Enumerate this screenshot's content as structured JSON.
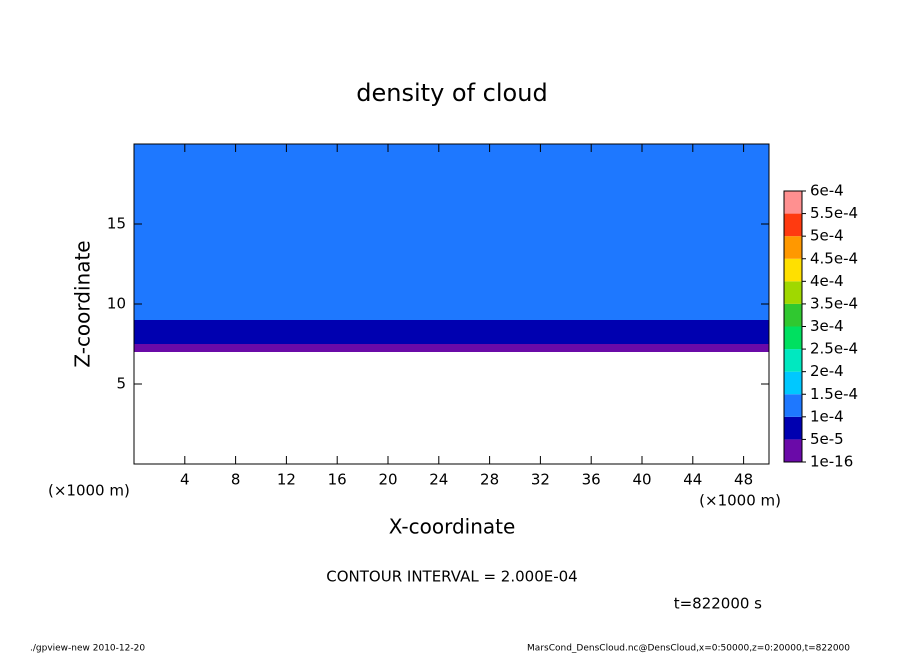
{
  "chart_data": {
    "type": "contour",
    "title": "density of cloud",
    "x_label": "X-coordinate",
    "y_label": "Z-coordinate",
    "x_unit_label": "(×1000 m)",
    "xlim": [
      0,
      50
    ],
    "xticks": [
      4,
      8,
      12,
      16,
      20,
      24,
      28,
      32,
      36,
      40,
      44,
      48
    ],
    "ylim": [
      0,
      20
    ],
    "yticks": [
      5,
      10,
      15
    ],
    "z_edges": [
      7,
      7.5,
      9,
      11,
      13,
      17,
      19,
      20
    ],
    "values": [
      3e-05,
      7e-05,
      0.00011,
      0.00013,
      0.00014,
      0.00013,
      0.00012
    ],
    "levels": [
      1e-16,
      {
        "value": 5e-05,
        "label": "5e-5"
      },
      {
        "value": 0.0001,
        "label": "1e-4"
      },
      {
        "value": 0.00015,
        "label": "1.5e-4"
      },
      {
        "value": 0.0002,
        "label": "2e-4"
      },
      {
        "value": 0.00025,
        "label": "2.5e-4"
      },
      {
        "value": 0.0003,
        "label": "3e-4"
      },
      {
        "value": 0.00035,
        "label": "3.5e-4"
      },
      {
        "value": 0.0004,
        "label": "4e-4"
      },
      {
        "value": 0.00045,
        "label": "4.5e-4"
      },
      {
        "value": 0.0005,
        "label": "5e-4"
      },
      {
        "value": 0.00055,
        "label": "5.5e-4"
      },
      {
        "value": 0.0006,
        "label": "6e-4"
      }
    ],
    "level_colors": [
      "#6a0aa8",
      "#0000b0",
      "#1e78ff",
      "#00c8ff",
      "#00e8c0",
      "#00e060",
      "#30c830",
      "#a0d800",
      "#ffe000",
      "#ff9800",
      "#ff3a10",
      "#ff9090"
    ],
    "contour_interval_text": "CONTOUR INTERVAL = 2.000E-04",
    "time_text": "t=822000 s",
    "footer_left": "./gpview-new  2010-12-20",
    "footer_right": "MarsCond_DensCloud.nc@DensCloud,x=0:50000,z=0:20000,t=822000"
  }
}
